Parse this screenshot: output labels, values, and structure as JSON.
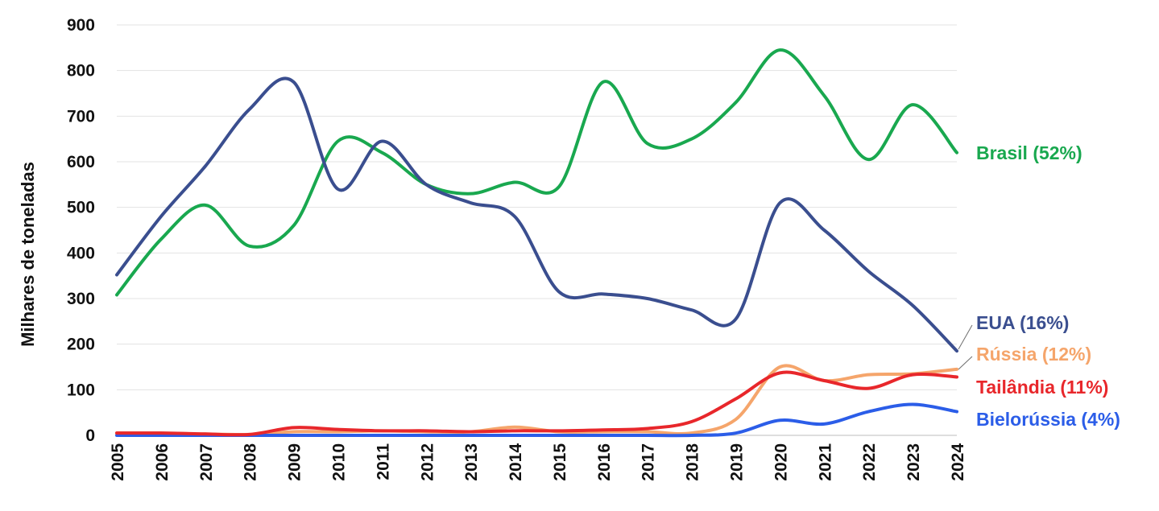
{
  "chart_data": {
    "type": "line",
    "ylabel": "Milhares de toneladas",
    "xlabel": "",
    "ylim": [
      0,
      900
    ],
    "yticks": [
      "0",
      "100",
      "200",
      "300",
      "400",
      "500",
      "600",
      "700",
      "800",
      "900"
    ],
    "x": [
      "2005",
      "2006",
      "2007",
      "2008",
      "2009",
      "2010",
      "2011",
      "2012",
      "2013",
      "2014",
      "2015",
      "2016",
      "2017",
      "2018",
      "2019",
      "2020",
      "2021",
      "2022",
      "2023",
      "2024"
    ],
    "grid": true,
    "series": [
      {
        "name": "Brasil (52%)",
        "color": "#19a84f",
        "values": [
          308,
          430,
          505,
          415,
          460,
          645,
          620,
          550,
          530,
          555,
          545,
          775,
          640,
          650,
          730,
          845,
          745,
          605,
          725,
          620
        ]
      },
      {
        "name": "EUA (16%)",
        "color": "#3a4e8f",
        "values": [
          352,
          480,
          590,
          715,
          775,
          540,
          645,
          550,
          510,
          480,
          315,
          310,
          300,
          275,
          255,
          510,
          450,
          360,
          285,
          185
        ]
      },
      {
        "name": "Rússia (12%)",
        "color": "#f5a56b",
        "values": [
          5,
          5,
          3,
          2,
          8,
          8,
          10,
          8,
          8,
          18,
          8,
          8,
          8,
          5,
          35,
          150,
          120,
          133,
          135,
          145
        ]
      },
      {
        "name": "Tailândia (11%)",
        "color": "#e8272b",
        "values": [
          5,
          5,
          3,
          2,
          17,
          13,
          10,
          10,
          8,
          10,
          10,
          12,
          15,
          30,
          80,
          137,
          120,
          103,
          133,
          128
        ]
      },
      {
        "name": "Bielorússia (4%)",
        "color": "#2b5de8",
        "values": [
          0,
          0,
          0,
          0,
          0,
          0,
          0,
          0,
          0,
          0,
          0,
          0,
          0,
          0,
          5,
          33,
          25,
          52,
          68,
          52
        ]
      }
    ]
  }
}
